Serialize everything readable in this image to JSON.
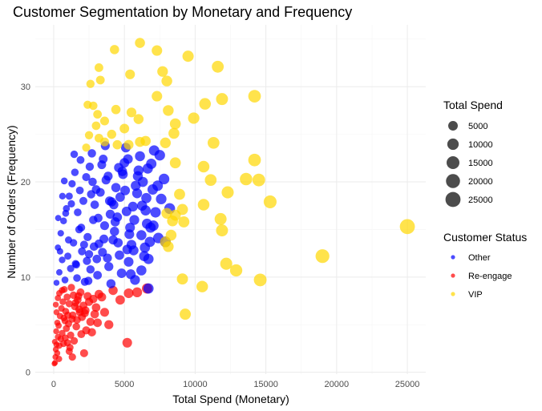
{
  "chart_data": {
    "type": "scatter",
    "title": "Customer Segmentation by Monetary and Frequency",
    "xlabel": "Total Spend (Monetary)",
    "ylabel": "Number of Orders (Frequency)",
    "xlim": [
      -1300,
      26300
    ],
    "ylim": [
      -0.2,
      36.5
    ],
    "x_ticks": [
      0,
      5000,
      10000,
      15000,
      20000,
      25000
    ],
    "x_tick_labels": [
      "0",
      "5000",
      "10000",
      "15000",
      "20000",
      "25000"
    ],
    "y_ticks": [
      0,
      10,
      20,
      30
    ],
    "y_tick_labels": [
      "0",
      "10",
      "20",
      "30"
    ],
    "grid": true,
    "size_legend": {
      "title": "Total Spend",
      "values": [
        5000,
        10000,
        15000,
        20000,
        25000
      ],
      "labels": [
        "5000",
        "10000",
        "15000",
        "20000",
        "25000"
      ]
    },
    "color_legend": {
      "title": "Customer Status",
      "entries": [
        {
          "label": "Other",
          "color": "#0000ff"
        },
        {
          "label": "Re-engage",
          "color": "#ff0000"
        },
        {
          "label": "VIP",
          "color": "#ffd700"
        }
      ]
    },
    "series": [
      {
        "name": "Re-engage",
        "color": "#ff0000",
        "points": [
          [
            50,
            0.9
          ],
          [
            100,
            1.0
          ],
          [
            150,
            2.4
          ],
          [
            80,
            3.2
          ],
          [
            200,
            2.9
          ],
          [
            120,
            1.6
          ],
          [
            250,
            2.0
          ],
          [
            300,
            3.7
          ],
          [
            180,
            4.3
          ],
          [
            400,
            2.8
          ],
          [
            350,
            4.9
          ],
          [
            500,
            3.5
          ],
          [
            260,
            5.2
          ],
          [
            450,
            5.9
          ],
          [
            600,
            4.1
          ],
          [
            200,
            6.3
          ],
          [
            700,
            3.0
          ],
          [
            150,
            7.1
          ],
          [
            550,
            6.7
          ],
          [
            800,
            5.4
          ],
          [
            300,
            7.8
          ],
          [
            900,
            4.6
          ],
          [
            650,
            7.4
          ],
          [
            1000,
            6.0
          ],
          [
            400,
            8.3
          ],
          [
            1100,
            7.2
          ],
          [
            750,
            8.7
          ],
          [
            1200,
            3.9
          ],
          [
            1300,
            5.6
          ],
          [
            850,
            6.4
          ],
          [
            1400,
            8.1
          ],
          [
            1500,
            6.9
          ],
          [
            950,
            7.9
          ],
          [
            1600,
            4.8
          ],
          [
            1700,
            7.6
          ],
          [
            1050,
            5.1
          ],
          [
            1800,
            6.6
          ],
          [
            1900,
            8.4
          ],
          [
            1150,
            2.6
          ],
          [
            2000,
            5.8
          ],
          [
            2100,
            7.0
          ],
          [
            1250,
            8.9
          ],
          [
            2200,
            6.2
          ],
          [
            2300,
            4.4
          ],
          [
            1350,
            6.0
          ],
          [
            2500,
            7.4
          ],
          [
            2600,
            5.3
          ],
          [
            1450,
            3.3
          ],
          [
            2800,
            7.7
          ],
          [
            3000,
            6.8
          ],
          [
            1550,
            7.3
          ],
          [
            3200,
            8.2
          ],
          [
            3400,
            7.9
          ],
          [
            1650,
            5.5
          ],
          [
            2700,
            4.2
          ],
          [
            1750,
            8.0
          ],
          [
            600,
            8.6
          ],
          [
            2400,
            8.0
          ],
          [
            1850,
            6.3
          ],
          [
            720,
            5.7
          ],
          [
            2900,
            6.1
          ],
          [
            1950,
            4.0
          ],
          [
            820,
            3.6
          ],
          [
            1100,
            2.2
          ],
          [
            2150,
            2.0
          ],
          [
            3600,
            6.3
          ],
          [
            3900,
            5.0
          ],
          [
            4200,
            8.6
          ],
          [
            4700,
            7.6
          ],
          [
            5300,
            8.3
          ],
          [
            5900,
            8.4
          ],
          [
            6600,
            8.8
          ],
          [
            5200,
            3.1
          ],
          [
            1320,
            1.6
          ],
          [
            3100,
            5.2
          ],
          [
            2250,
            6.5
          ],
          [
            380,
            1.4
          ],
          [
            980,
            3.1
          ]
        ]
      },
      {
        "name": "Other",
        "color": "#0000ff",
        "points": [
          [
            200,
            9.4
          ],
          [
            400,
            10.5
          ],
          [
            600,
            11.8
          ],
          [
            300,
            13.1
          ],
          [
            800,
            9.7
          ],
          [
            500,
            14.6
          ],
          [
            1000,
            12.2
          ],
          [
            700,
            15.9
          ],
          [
            1200,
            10.9
          ],
          [
            900,
            17.2
          ],
          [
            1400,
            13.6
          ],
          [
            1100,
            18.5
          ],
          [
            1600,
            11.3
          ],
          [
            1300,
            19.8
          ],
          [
            1800,
            15.0
          ],
          [
            1500,
            21.0
          ],
          [
            2000,
            12.7
          ],
          [
            1700,
            16.8
          ],
          [
            2200,
            9.5
          ],
          [
            1900,
            22.3
          ],
          [
            2400,
            14.2
          ],
          [
            2100,
            18.0
          ],
          [
            2600,
            10.8
          ],
          [
            2300,
            20.5
          ],
          [
            2800,
            16.0
          ],
          [
            2500,
            12.4
          ],
          [
            3000,
            19.2
          ],
          [
            2700,
            23.0
          ],
          [
            3200,
            13.5
          ],
          [
            2900,
            17.6
          ],
          [
            3400,
            21.8
          ],
          [
            3100,
            10.2
          ],
          [
            3600,
            15.4
          ],
          [
            3300,
            18.9
          ],
          [
            3800,
            12.0
          ],
          [
            3500,
            22.4
          ],
          [
            4000,
            16.6
          ],
          [
            3700,
            20.2
          ],
          [
            4200,
            13.9
          ],
          [
            3900,
            11.1
          ],
          [
            4400,
            19.4
          ],
          [
            4100,
            17.9
          ],
          [
            4600,
            21.5
          ],
          [
            4300,
            14.8
          ],
          [
            4800,
            10.4
          ],
          [
            4500,
            16.3
          ],
          [
            5000,
            22.0
          ],
          [
            4700,
            18.4
          ],
          [
            5200,
            12.9
          ],
          [
            4900,
            20.8
          ],
          [
            5400,
            15.2
          ],
          [
            5100,
            23.6
          ],
          [
            5600,
            17.4
          ],
          [
            5300,
            11.6
          ],
          [
            5800,
            19.6
          ],
          [
            5500,
            13.4
          ],
          [
            6000,
            21.2
          ],
          [
            5700,
            16.0
          ],
          [
            6200,
            14.4
          ],
          [
            5900,
            18.8
          ],
          [
            6400,
            12.2
          ],
          [
            6100,
            22.7
          ],
          [
            6600,
            15.6
          ],
          [
            6300,
            20.0
          ],
          [
            6800,
            13.7
          ],
          [
            6500,
            17.0
          ],
          [
            7000,
            19.2
          ],
          [
            6700,
            11.9
          ],
          [
            7200,
            16.8
          ],
          [
            6900,
            21.9
          ],
          [
            7400,
            14.1
          ],
          [
            7100,
            23.3
          ],
          [
            7600,
            18.2
          ],
          [
            7800,
            20.3
          ],
          [
            7900,
            13.7
          ],
          [
            8200,
            17.2
          ],
          [
            6700,
            8.8
          ],
          [
            7500,
            22.8
          ],
          [
            6200,
            10.7
          ],
          [
            1050,
            13.9
          ],
          [
            2350,
            11.7
          ],
          [
            3550,
            14.0
          ],
          [
            4650,
            12.3
          ],
          [
            5750,
            9.7
          ],
          [
            850,
            16.7
          ],
          [
            1950,
            15.2
          ],
          [
            3150,
            16.2
          ],
          [
            4250,
            17.6
          ],
          [
            5350,
            14.5
          ],
          [
            6450,
            13.1
          ],
          [
            450,
            12.7
          ],
          [
            1650,
            9.9
          ],
          [
            2850,
            13.2
          ],
          [
            4050,
            9.3
          ],
          [
            5450,
            10.3
          ],
          [
            6850,
            15.2
          ],
          [
            750,
            20.1
          ],
          [
            2650,
            18.7
          ],
          [
            3850,
            20.6
          ],
          [
            5050,
            19.1
          ],
          [
            6250,
            17.5
          ],
          [
            7350,
            19.6
          ],
          [
            1450,
            22.9
          ],
          [
            2550,
            21.6
          ],
          [
            3650,
            23.8
          ],
          [
            4850,
            21.1
          ],
          [
            5950,
            20.6
          ],
          [
            7050,
            15.4
          ],
          [
            320,
            16.2
          ],
          [
            1250,
            17.7
          ],
          [
            2150,
            13.4
          ],
          [
            3050,
            11.9
          ],
          [
            4350,
            15.8
          ],
          [
            5150,
            16.9
          ],
          [
            1550,
            11.4
          ],
          [
            2450,
            9.6
          ],
          [
            3450,
            12.6
          ],
          [
            4550,
            13.6
          ],
          [
            5650,
            12.8
          ],
          [
            6550,
            18.3
          ],
          [
            620,
            18.5
          ],
          [
            1850,
            19.1
          ],
          [
            2750,
            20.0
          ],
          [
            3950,
            18.0
          ],
          [
            5250,
            22.4
          ],
          [
            6650,
            21.4
          ]
        ]
      },
      {
        "name": "VIP",
        "color": "#ffd700",
        "points": [
          [
            4300,
            33.9
          ],
          [
            6100,
            34.6
          ],
          [
            7300,
            33.8
          ],
          [
            9500,
            33.2
          ],
          [
            11600,
            32.1
          ],
          [
            3200,
            32.0
          ],
          [
            2600,
            30.3
          ],
          [
            3300,
            30.7
          ],
          [
            5400,
            31.3
          ],
          [
            7700,
            31.6
          ],
          [
            8000,
            30.6
          ],
          [
            2400,
            28.1
          ],
          [
            2800,
            28.0
          ],
          [
            4400,
            27.6
          ],
          [
            7300,
            29.0
          ],
          [
            8100,
            27.5
          ],
          [
            10700,
            28.2
          ],
          [
            11900,
            28.7
          ],
          [
            14200,
            29.0
          ],
          [
            3100,
            27.1
          ],
          [
            3000,
            25.9
          ],
          [
            3600,
            26.4
          ],
          [
            5500,
            27.3
          ],
          [
            6000,
            26.6
          ],
          [
            8600,
            26.1
          ],
          [
            9900,
            26.7
          ],
          [
            2500,
            24.9
          ],
          [
            3200,
            24.6
          ],
          [
            4100,
            25.0
          ],
          [
            5000,
            25.6
          ],
          [
            6100,
            24.2
          ],
          [
            8500,
            25.1
          ],
          [
            2300,
            23.6
          ],
          [
            3600,
            24.2
          ],
          [
            4500,
            23.9
          ],
          [
            5300,
            23.9
          ],
          [
            6500,
            24.3
          ],
          [
            7900,
            24.1
          ],
          [
            11300,
            24.1
          ],
          [
            14200,
            22.3
          ],
          [
            8600,
            22.0
          ],
          [
            10600,
            21.6
          ],
          [
            11100,
            20.2
          ],
          [
            13600,
            20.3
          ],
          [
            14500,
            20.2
          ],
          [
            8900,
            18.7
          ],
          [
            12300,
            18.9
          ],
          [
            15300,
            17.9
          ],
          [
            10600,
            17.6
          ],
          [
            8000,
            16.7
          ],
          [
            8600,
            16.5
          ],
          [
            9100,
            17.1
          ],
          [
            11800,
            16.1
          ],
          [
            8400,
            15.9
          ],
          [
            9200,
            15.8
          ],
          [
            8300,
            14.4
          ],
          [
            11900,
            14.9
          ],
          [
            7900,
            13.7
          ],
          [
            8100,
            13.2
          ],
          [
            12200,
            11.4
          ],
          [
            12900,
            10.7
          ],
          [
            9100,
            9.8
          ],
          [
            10500,
            9.0
          ],
          [
            14600,
            9.7
          ],
          [
            19000,
            12.2
          ],
          [
            25000,
            15.3
          ],
          [
            9300,
            6.1
          ]
        ]
      }
    ]
  }
}
